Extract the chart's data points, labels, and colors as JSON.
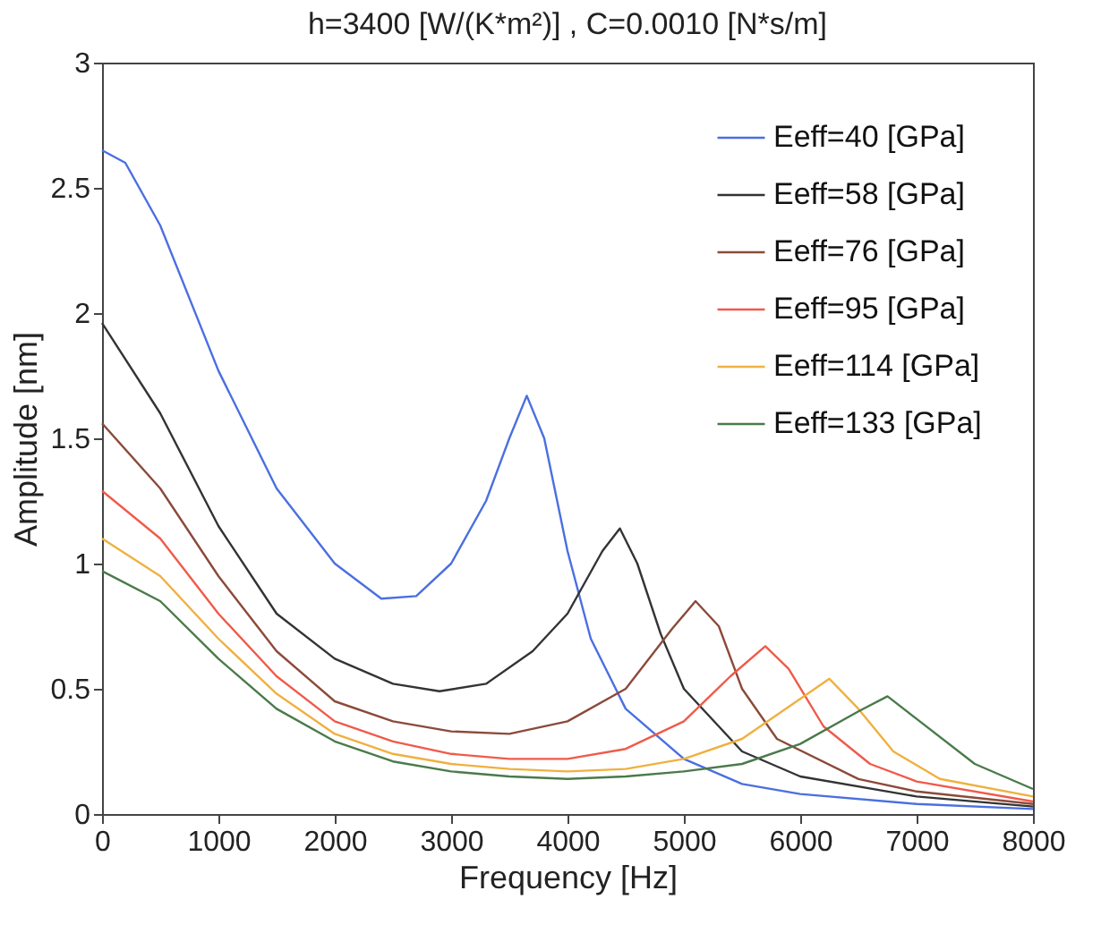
{
  "chart_data": {
    "type": "line",
    "title": "h=3400 [W/(K*m²)] , C=0.0010 [N*s/m]",
    "xlabel": "Frequency [Hz]",
    "ylabel": "Amplitude [nm]",
    "xlim": [
      0,
      8000
    ],
    "xticks": [
      0,
      1000,
      2000,
      3000,
      4000,
      5000,
      6000,
      7000,
      8000
    ],
    "ylim": [
      0,
      3
    ],
    "yticks": [
      0,
      0.5,
      1,
      1.5,
      2,
      2.5,
      3
    ],
    "grid": false,
    "legend": "top right",
    "marker": "none",
    "line_style": "solid",
    "series": [
      {
        "name": "Eeff=40 [GPa]",
        "color": "#4a6fe0",
        "x": [
          0,
          200,
          500,
          1000,
          1500,
          2000,
          2400,
          2700,
          3000,
          3300,
          3500,
          3650,
          3800,
          4000,
          4200,
          4500,
          5000,
          5500,
          6000,
          7000,
          8000
        ],
        "values": [
          2.65,
          2.6,
          2.35,
          1.77,
          1.3,
          1.0,
          0.86,
          0.87,
          1.0,
          1.25,
          1.5,
          1.67,
          1.5,
          1.05,
          0.7,
          0.42,
          0.22,
          0.12,
          0.08,
          0.04,
          0.02
        ]
      },
      {
        "name": "Eeff=58 [GPa]",
        "color": "#333333",
        "x": [
          0,
          500,
          1000,
          1500,
          2000,
          2500,
          2900,
          3300,
          3700,
          4000,
          4300,
          4450,
          4600,
          4800,
          5000,
          5500,
          6000,
          7000,
          8000
        ],
        "values": [
          1.96,
          1.6,
          1.15,
          0.8,
          0.62,
          0.52,
          0.49,
          0.52,
          0.65,
          0.8,
          1.05,
          1.14,
          1.0,
          0.72,
          0.5,
          0.25,
          0.15,
          0.07,
          0.03
        ]
      },
      {
        "name": "Eeff=76 [GPa]",
        "color": "#8b4a3a",
        "x": [
          0,
          500,
          1000,
          1500,
          2000,
          2500,
          3000,
          3500,
          4000,
          4500,
          4900,
          5100,
          5300,
          5500,
          5800,
          6500,
          7000,
          8000
        ],
        "values": [
          1.56,
          1.3,
          0.95,
          0.65,
          0.45,
          0.37,
          0.33,
          0.32,
          0.37,
          0.5,
          0.74,
          0.85,
          0.75,
          0.5,
          0.3,
          0.14,
          0.09,
          0.04
        ]
      },
      {
        "name": "Eeff=95 [GPa]",
        "color": "#f05a4a",
        "x": [
          0,
          500,
          1000,
          1500,
          2000,
          2500,
          3000,
          3500,
          4000,
          4500,
          5000,
          5400,
          5700,
          5900,
          6200,
          6600,
          7000,
          8000
        ],
        "values": [
          1.29,
          1.1,
          0.8,
          0.55,
          0.37,
          0.29,
          0.24,
          0.22,
          0.22,
          0.26,
          0.37,
          0.55,
          0.67,
          0.58,
          0.35,
          0.2,
          0.13,
          0.05
        ]
      },
      {
        "name": "Eeff=114 [GPa]",
        "color": "#f0b040",
        "x": [
          0,
          500,
          1000,
          1500,
          2000,
          2500,
          3000,
          3500,
          4000,
          4500,
          5000,
          5500,
          6000,
          6250,
          6500,
          6800,
          7200,
          8000
        ],
        "values": [
          1.1,
          0.95,
          0.7,
          0.48,
          0.32,
          0.24,
          0.2,
          0.18,
          0.17,
          0.18,
          0.22,
          0.3,
          0.46,
          0.54,
          0.42,
          0.25,
          0.14,
          0.07
        ]
      },
      {
        "name": "Eeff=133 [GPa]",
        "color": "#4a7a4a",
        "x": [
          0,
          500,
          1000,
          1500,
          2000,
          2500,
          3000,
          3500,
          4000,
          4500,
          5000,
          5500,
          6000,
          6500,
          6750,
          7000,
          7500,
          8000
        ],
        "values": [
          0.97,
          0.85,
          0.62,
          0.42,
          0.29,
          0.21,
          0.17,
          0.15,
          0.14,
          0.15,
          0.17,
          0.2,
          0.28,
          0.41,
          0.47,
          0.38,
          0.2,
          0.1
        ]
      }
    ]
  }
}
